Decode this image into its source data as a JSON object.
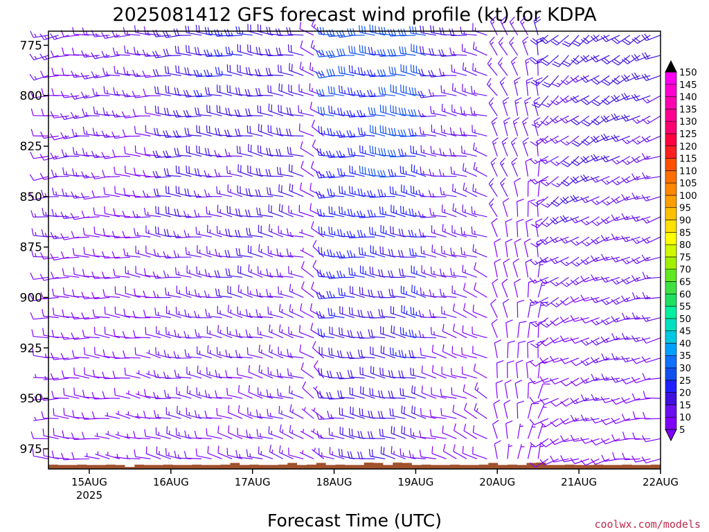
{
  "chart_data": {
    "type": "wind-barb-profile",
    "title": "2025081412 GFS forecast wind profile (kt) for KDPA",
    "xlabel": "Forecast Time (UTC)",
    "credit": "coolwx.com/models",
    "y_axis": {
      "quantity": "pressure (hPa)",
      "range": [
        985,
        768
      ],
      "inverted": true,
      "ticks": [
        775,
        800,
        825,
        850,
        875,
        900,
        925,
        950,
        975
      ]
    },
    "x_axis": {
      "start": "2025-08-14T12Z",
      "end": "2025-08-22T00Z",
      "ticks": [
        {
          "label": "15AUG",
          "sublabel": "2025",
          "hour": 12
        },
        {
          "label": "16AUG",
          "hour": 36
        },
        {
          "label": "17AUG",
          "hour": 60
        },
        {
          "label": "18AUG",
          "hour": 84
        },
        {
          "label": "19AUG",
          "hour": 108
        },
        {
          "label": "20AUG",
          "hour": 132
        },
        {
          "label": "21AUG",
          "hour": 156
        },
        {
          "label": "22AUG",
          "hour": 180
        }
      ]
    },
    "colorbar": {
      "unit": "kt",
      "levels": [
        5,
        10,
        15,
        20,
        25,
        30,
        35,
        40,
        45,
        50,
        55,
        60,
        65,
        70,
        75,
        80,
        85,
        90,
        95,
        100,
        105,
        110,
        115,
        120,
        125,
        130,
        135,
        140,
        145,
        150
      ],
      "colors": [
        "#7f00ff",
        "#6a10f0",
        "#4010e0",
        "#2020ff",
        "#1050f0",
        "#1070ff",
        "#00a0ff",
        "#00c8e0",
        "#00e0c0",
        "#00f0a0",
        "#20e060",
        "#40e040",
        "#60e820",
        "#a0f000",
        "#d0f800",
        "#ffff00",
        "#ffe000",
        "#ffc000",
        "#ffa000",
        "#ff8800",
        "#ff7000",
        "#ff5000",
        "#ff2020",
        "#ff0040",
        "#ff0070",
        "#ff0090",
        "#ff00b0",
        "#ff00d0",
        "#ff00f0",
        "#000000"
      ]
    },
    "terrain_color": "#a0522d",
    "terrain_pressure": [
      983,
      983,
      983,
      983,
      983,
      983,
      983,
      983,
      984,
      983,
      983,
      983,
      983,
      983,
      983,
      983,
      983,
      983,
      983,
      982,
      983,
      983,
      983,
      983,
      983,
      982,
      983,
      983,
      982,
      983,
      983,
      983,
      983,
      982,
      982,
      983,
      982,
      982,
      983,
      983,
      983,
      983,
      983,
      983,
      983,
      983,
      982,
      983,
      983,
      983,
      982,
      982,
      983,
      983,
      983,
      983,
      983,
      983,
      983,
      983,
      983,
      983,
      983,
      983
    ],
    "wind_hour_step": 3,
    "wind_levels": [
      770,
      780,
      790,
      800,
      810,
      820,
      830,
      840,
      850,
      860,
      870,
      880,
      890,
      900,
      910,
      920,
      930,
      940,
      950,
      960,
      970,
      980
    ],
    "wind_segments": [
      {
        "h0": 0,
        "h1": 36,
        "dir": [
          260,
          285
        ],
        "spd": [
          8,
          14
        ]
      },
      {
        "h0": 36,
        "h1": 78,
        "dir": [
          270,
          290
        ],
        "spd": [
          12,
          22
        ]
      },
      {
        "h0": 78,
        "h1": 84,
        "dir": [
          290,
          320
        ],
        "spd": [
          6,
          12
        ]
      },
      {
        "h0": 84,
        "h1": 114,
        "dir": [
          270,
          285
        ],
        "spd": [
          18,
          30
        ]
      },
      {
        "h0": 114,
        "h1": 130,
        "dir": [
          270,
          300
        ],
        "spd": [
          10,
          18
        ]
      },
      {
        "h0": 130,
        "h1": 146,
        "dir": [
          320,
          20
        ],
        "spd": [
          8,
          16
        ]
      },
      {
        "h0": 146,
        "h1": 181,
        "dir": [
          225,
          265
        ],
        "spd": [
          10,
          20
        ]
      }
    ]
  }
}
